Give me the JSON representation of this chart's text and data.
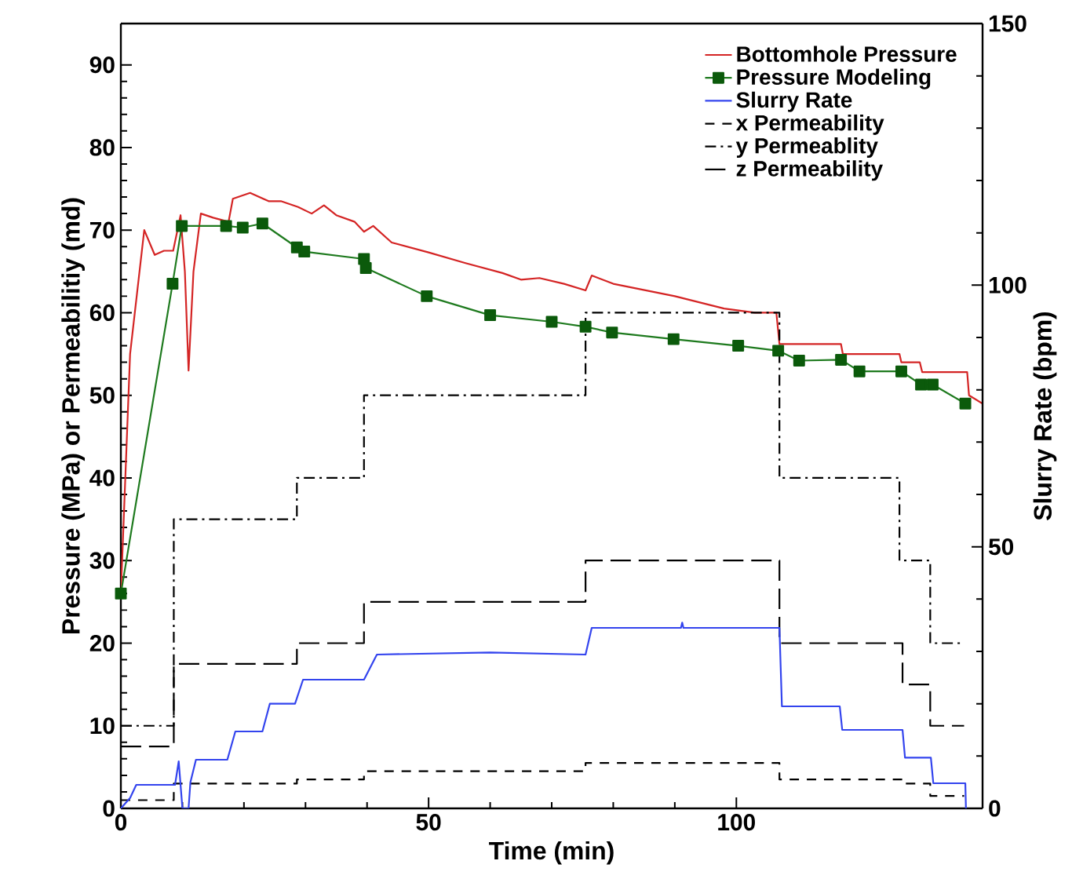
{
  "chart_data": {
    "type": "line",
    "xlabel": "Time (min)",
    "ylabel": "Pressure (MPa) or  Permeabilitiy (md)",
    "y2label": "Slurry Rate (bpm)",
    "xlim": [
      0,
      140
    ],
    "xticks": [
      0,
      50,
      100
    ],
    "ylim": [
      0,
      95
    ],
    "yticks": [
      0,
      10,
      20,
      30,
      40,
      50,
      60,
      70,
      80,
      90
    ],
    "y2lim": [
      0,
      150
    ],
    "y2ticks": [
      0,
      50,
      100,
      150
    ],
    "grid": false,
    "legend": "top right",
    "series": [
      {
        "name": "Bottomhole Pressure",
        "color": "#d42424",
        "marker": "none",
        "line_style": "solid",
        "x": [
          0,
          1.5,
          3.8,
          5.5,
          7,
          8.5,
          9.7,
          10.4,
          11,
          11.8,
          13,
          15,
          17.5,
          18.2,
          21,
          24,
          26,
          28.8,
          31,
          33,
          35,
          38,
          39.5,
          41,
          44,
          50,
          56,
          62,
          65,
          68,
          72,
          75.5,
          76.5,
          80,
          90,
          98,
          103,
          106.5,
          107,
          117,
          117.3,
          126.5,
          126.8,
          129.8,
          130.2,
          137.5,
          137.8,
          140
        ],
        "values": [
          26,
          55,
          70,
          67,
          67.5,
          67.5,
          71.8,
          65,
          53,
          65,
          72,
          71.5,
          71,
          73.8,
          74.5,
          73.5,
          73.5,
          72.8,
          72,
          73,
          71.8,
          71,
          69.8,
          70.5,
          68.5,
          67.3,
          66,
          64.8,
          64,
          64.2,
          63.5,
          62.7,
          64.5,
          63.5,
          62,
          60.5,
          60,
          60,
          56.2,
          56.2,
          55,
          55,
          54,
          54,
          52.8,
          52.8,
          50,
          49
        ]
      },
      {
        "name": "Pressure Modeling",
        "color": "#1e7a1e",
        "marker": "square",
        "line_style": "solid",
        "x": [
          0,
          8.4,
          9.9,
          17.1,
          19.8,
          23,
          28.6,
          29.8,
          39.5,
          39.8,
          49.7,
          60,
          70,
          75.5,
          79.8,
          89.8,
          100.3,
          106.8,
          110.2,
          117,
          120,
          126.8,
          130,
          131.9,
          137.2
        ],
        "values": [
          26,
          63.5,
          70.5,
          70.5,
          70.3,
          70.8,
          67.9,
          67.4,
          66.5,
          65.4,
          62,
          59.7,
          58.9,
          58.3,
          57.6,
          56.8,
          56,
          55.4,
          54.2,
          54.3,
          52.9,
          52.9,
          51.3,
          51.3,
          49
        ]
      },
      {
        "name": "Slurry Rate",
        "color": "#3344ee",
        "marker": "none",
        "line_style": "solid",
        "axis": "y2",
        "x": [
          0,
          1.5,
          2.5,
          8.8,
          9.4,
          10,
          11,
          11.3,
          12.2,
          17.3,
          18.6,
          23,
          24.2,
          28.3,
          29.6,
          39.5,
          41.6,
          60,
          75.5,
          76.5,
          91,
          91.2,
          91.4,
          107,
          107.4,
          116.8,
          117.2,
          127,
          127.4,
          131.6,
          132,
          137.2,
          137.3
        ],
        "values": [
          0,
          2,
          4.5,
          4.5,
          9,
          0,
          0,
          5,
          9.3,
          9.3,
          14.7,
          14.7,
          20,
          20,
          24.6,
          24.6,
          29.4,
          29.8,
          29.4,
          34.5,
          34.5,
          35.5,
          34.5,
          34.5,
          19.5,
          19.5,
          15,
          15,
          9.7,
          9.7,
          4.8,
          4.8,
          0
        ]
      },
      {
        "name": "x Permeability",
        "type": "step",
        "color": "#000000",
        "marker": "none",
        "line_style": "dashed",
        "x": [
          0,
          8.6,
          28.6,
          39.5,
          75.5,
          107,
          127,
          131.5,
          137
        ],
        "values": [
          1,
          3,
          3.5,
          4.5,
          5.5,
          3.5,
          3,
          1.5,
          1.5
        ]
      },
      {
        "name": "y Permeablity",
        "type": "step",
        "color": "#000000",
        "marker": "none",
        "line_style": "dashdot",
        "x": [
          0,
          8.6,
          28.6,
          39.5,
          75.5,
          107,
          126.5,
          131.5,
          137
        ],
        "values": [
          10,
          35,
          40,
          50,
          60,
          40,
          30,
          20,
          20
        ]
      },
      {
        "name": "z Permeability",
        "type": "step",
        "color": "#000000",
        "marker": "none",
        "line_style": "longdashed",
        "x": [
          0,
          8.6,
          28.6,
          39.5,
          75.5,
          107,
          127,
          131.5,
          137
        ],
        "values": [
          7.5,
          17.5,
          20,
          25,
          30,
          20,
          15,
          10,
          10
        ]
      }
    ]
  }
}
